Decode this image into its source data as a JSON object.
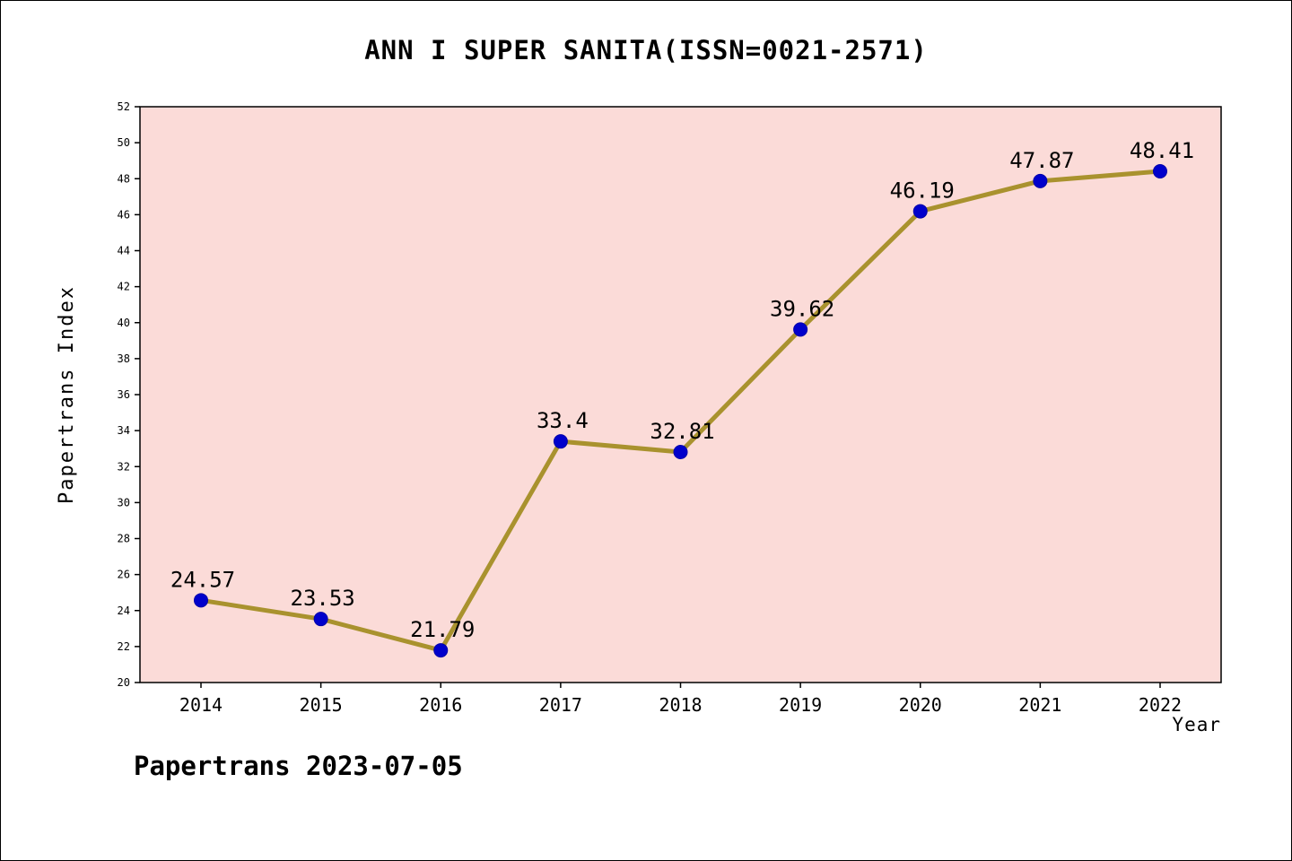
{
  "title": "ANN I SUPER SANITA(ISSN=0021-2571)",
  "footer": "Papertrans 2023-07-05",
  "chart_data": {
    "type": "line",
    "title": "ANN I SUPER SANITA(ISSN=0021-2571)",
    "xlabel": "Year",
    "ylabel": "Papertrans Index",
    "categories": [
      "2014",
      "2015",
      "2016",
      "2017",
      "2018",
      "2019",
      "2020",
      "2021",
      "2022"
    ],
    "values": [
      24.57,
      23.53,
      21.79,
      33.4,
      32.81,
      39.62,
      46.19,
      47.87,
      48.41
    ],
    "point_labels": [
      "24.57",
      "23.53",
      "21.79",
      "33.4",
      "32.81",
      "39.62",
      "46.19",
      "47.87",
      "48.41"
    ],
    "ylim": [
      20,
      52
    ],
    "ytick_step": 2,
    "grid": false,
    "legend": "none",
    "colors": {
      "line": "#A9922E",
      "marker": "#0000CC",
      "plot_bg": "#FBDBD8",
      "axis": "#000000",
      "label": "#000000"
    }
  }
}
